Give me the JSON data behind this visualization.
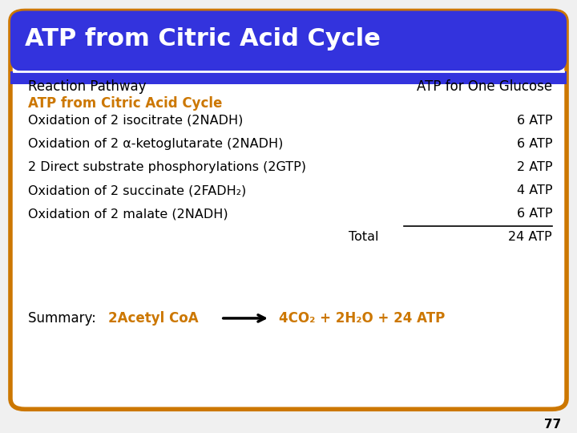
{
  "title": "ATP from Citric Acid Cycle",
  "title_bg": "#3333DD",
  "title_color": "#FFFFFF",
  "header_left": "Reaction Pathway",
  "header_right": "ATP for One Glucose",
  "subheader": "ATP from Citric Acid Cycle",
  "subheader_color": "#CC7700",
  "rows": [
    {
      "left": "Oxidation of 2 isocitrate (2NADH)",
      "right": "6 ATP",
      "underline": false
    },
    {
      "left": "Oxidation of 2 α-ketoglutarate (2NADH)",
      "right": "6 ATP",
      "underline": false
    },
    {
      "left": "2 Direct substrate phosphorylations (2GTP)",
      "right": "2 ATP",
      "underline": false
    },
    {
      "left": "Oxidation of 2 succinate (2FADH₂)",
      "right": "4 ATP",
      "underline": false
    },
    {
      "left": "Oxidation of 2 malate (2NADH)",
      "right": "6 ATP",
      "underline": true
    }
  ],
  "total_label": "Total",
  "total_value": "24 ATP",
  "summary_prefix": "Summary: ",
  "summary_colored": "2Acetyl CoA",
  "summary_right": "4CO₂ + 2H₂O + 24 ATP",
  "summary_color": "#CC7700",
  "border_color": "#CC7700",
  "bg_color": "#FFFFFF",
  "text_color": "#000000",
  "page_number": "77",
  "outer_bg": "#F0F0F0"
}
